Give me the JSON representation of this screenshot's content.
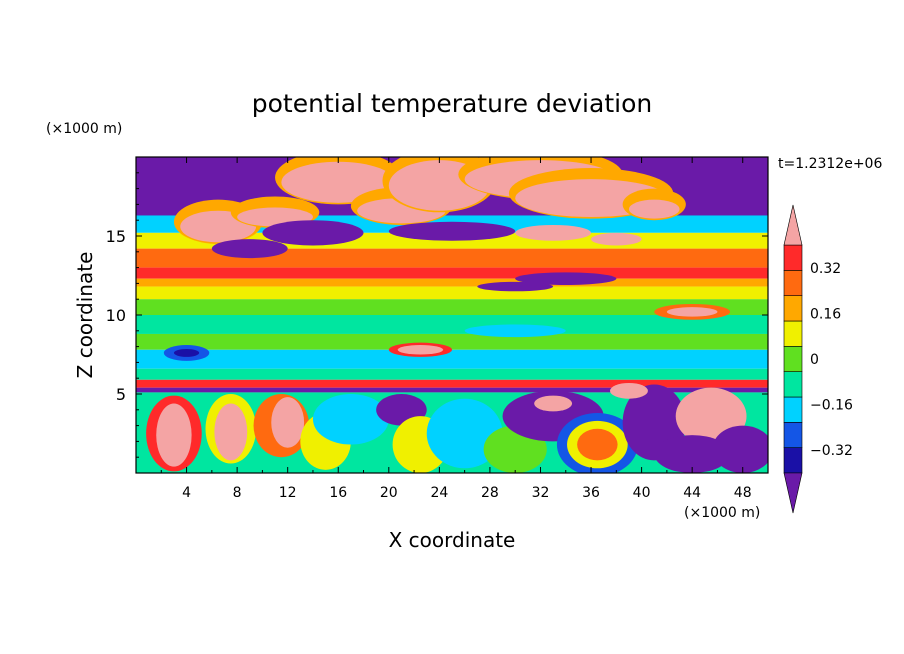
{
  "chart_data": {
    "type": "heatmap",
    "title": "potential temperature deviation",
    "time_label": "t=1.2312e+06",
    "xlabel": "X coordinate",
    "ylabel": "Z coordinate",
    "x_unit": "(×1000 m)",
    "y_unit": "(×1000 m)",
    "xlim": [
      0,
      50
    ],
    "ylim": [
      0,
      20
    ],
    "x_ticks": [
      "4",
      "8",
      "12",
      "16",
      "20",
      "24",
      "28",
      "32",
      "36",
      "40",
      "44",
      "48"
    ],
    "y_ticks": [
      "5",
      "10",
      "15"
    ],
    "colorbar": {
      "levels": [
        -0.4,
        -0.32,
        -0.24,
        -0.16,
        -0.08,
        0,
        0.08,
        0.16,
        0.24,
        0.32,
        0.4
      ],
      "tick_labels": [
        "0.32",
        "0.16",
        "0",
        "−0.16",
        "−0.32"
      ],
      "tick_values": [
        0.32,
        0.16,
        0,
        -0.16,
        -0.32
      ],
      "colors_low_to_high": [
        "#6a1aa8",
        "#1a10a6",
        "#1456e6",
        "#00d2ff",
        "#00e6a0",
        "#60e020",
        "#f0f000",
        "#ffa800",
        "#ff6a10",
        "#ff2a2a",
        "#f4a4a4"
      ],
      "over_color": "#f4a4a4",
      "under_color": "#6a1aa8"
    },
    "field_description": {
      "layers": [
        {
          "z_range": [
            16.5,
            20
          ],
          "value": "mixed purple and pink (-0.4 / 0.4+)"
        },
        {
          "z_range": [
            13,
            16
          ],
          "value": "orange/red positive band with pink patches"
        },
        {
          "z_range": [
            11.5,
            13
          ],
          "value": "orange to yellow (~0.16-0.24)"
        },
        {
          "z_range": [
            6,
            11.5
          ],
          "value": "green to cyan (~-0.08-0.08)"
        },
        {
          "z_range": [
            5.2,
            6
          ],
          "value": "sharp inversion: red over purple"
        },
        {
          "z_range": [
            0,
            5.2
          ],
          "value": "turbulent mix of purple, cyan, green, yellow, pink plumes"
        }
      ]
    }
  }
}
